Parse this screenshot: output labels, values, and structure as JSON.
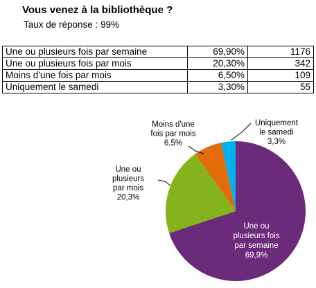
{
  "header": {
    "title": "Vous venez à la bibliothèque ?",
    "subtitle": "Taux de réponse : 99%"
  },
  "table": {
    "rows": [
      {
        "label": "Une ou plusieurs  fois par semaine",
        "pct": "69,90%",
        "count": "1176"
      },
      {
        "label": "Une ou plusieurs  fois par mois",
        "pct": "20,30%",
        "count": "342"
      },
      {
        "label": "Moins d'une fois par mois",
        "pct": "6,50%",
        "count": "109"
      },
      {
        "label": "Uniquement le samedi",
        "pct": "3,30%",
        "count": "55"
      }
    ]
  },
  "chart_data": {
    "type": "pie",
    "categories": [
      "Une ou plusieurs fois par semaine",
      "Une ou plusieurs fois par mois",
      "Moins d'une fois par mois",
      "Uniquement le samedi"
    ],
    "values": [
      69.9,
      20.3,
      6.5,
      3.3
    ],
    "colors": [
      "#6b2a7a",
      "#84b31c",
      "#e36c0a",
      "#00b0f0"
    ],
    "start": "12 o'clock, clockwise",
    "labels": [
      {
        "lines": [
          "Une ou",
          "plusieurs fois",
          "par semaine",
          "69,9%"
        ],
        "color": "#ffffff"
      },
      {
        "lines": [
          "Une ou",
          "plusieurs",
          "par mois",
          "20,3%"
        ],
        "color": "#000000"
      },
      {
        "lines": [
          "Moins d'une",
          "fois par mois",
          "6,5%"
        ],
        "color": "#000000"
      },
      {
        "lines": [
          "Uniquement",
          "le samedi",
          "3,3%"
        ],
        "color": "#000000"
      }
    ]
  }
}
